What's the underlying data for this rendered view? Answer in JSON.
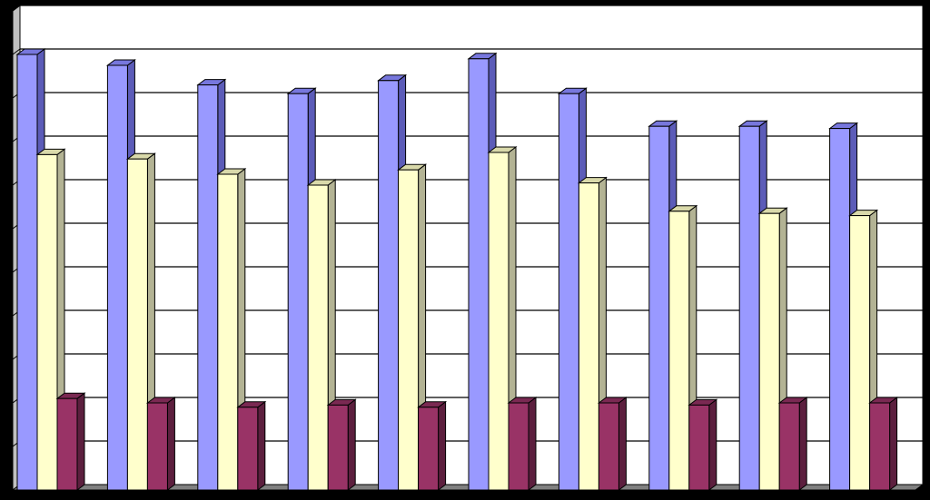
{
  "chart_data": {
    "type": "bar",
    "categories": [
      "",
      "",
      "",
      "",
      "",
      "",
      "",
      "",
      "",
      ""
    ],
    "series": [
      {
        "color": "#9999FF",
        "side": "#5C5CB8",
        "top": "#7777DD",
        "values": [
          100,
          97.5,
          93,
          91,
          94,
          99,
          91,
          83.5,
          83.5,
          83
        ]
      },
      {
        "color": "#FFFFCC",
        "side": "#B3B394",
        "top": "#D9D9AA",
        "values": [
          77,
          76,
          72.5,
          70,
          73.5,
          77.5,
          70.5,
          64,
          63.5,
          63
        ]
      },
      {
        "color": "#993366",
        "side": "#5C1F3E",
        "top": "#7A2952",
        "values": [
          21,
          20,
          19,
          19.5,
          19,
          20,
          20,
          19.5,
          20,
          20
        ]
      }
    ],
    "ylim": [
      0,
      110
    ],
    "gridline_count": 11,
    "grid": true,
    "legend": false,
    "colors": {
      "background": "#000000",
      "plot_area": "#FFFFFF",
      "floor": "#808080",
      "left_wall": "#C0C0C0",
      "gridline": "#000000"
    }
  }
}
